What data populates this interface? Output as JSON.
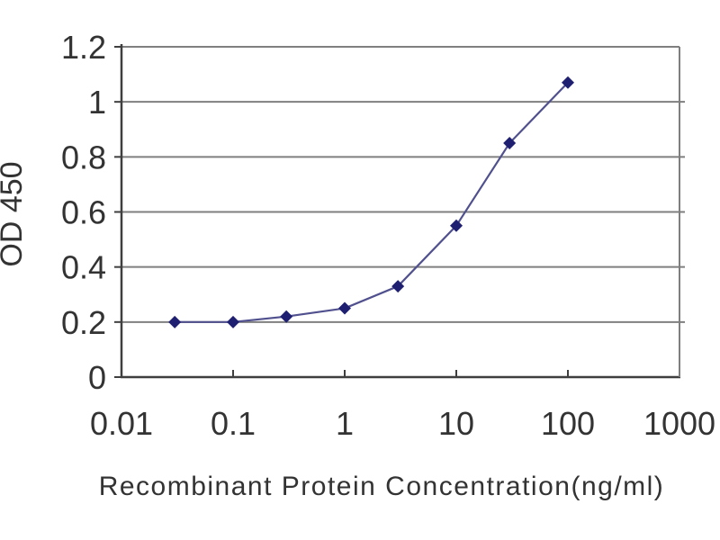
{
  "figure": {
    "background": "#ffffff"
  },
  "chart_data": {
    "type": "line",
    "title": "",
    "xlabel": "Recombinant Protein Concentration(ng/ml)",
    "ylabel": "OD 450",
    "x_scale": "log10",
    "xlim": [
      0.01,
      1000
    ],
    "ylim": [
      0,
      1.2
    ],
    "x_tick_values": [
      0.01,
      0.1,
      1,
      10,
      100,
      1000
    ],
    "x_tick_labels": [
      "0.01",
      "0.1",
      "1",
      "10",
      "100",
      "1000"
    ],
    "y_tick_values": [
      0,
      0.2,
      0.4,
      0.6,
      0.8,
      1.0,
      1.2
    ],
    "y_tick_labels": [
      "0",
      "0.2",
      "0.4",
      "0.6",
      "0.8",
      "1",
      "1.2"
    ],
    "grid": "horizontal",
    "legend": "none",
    "series": [
      {
        "name": "OD450",
        "marker": "diamond",
        "line_color": "#50508e",
        "marker_color": "#1f1f72",
        "x": [
          0.03,
          0.1,
          0.3,
          1,
          3,
          10,
          30,
          100
        ],
        "y": [
          0.2,
          0.2,
          0.22,
          0.25,
          0.33,
          0.55,
          0.85,
          1.07
        ]
      }
    ],
    "colors": {
      "gridline": "#7f7f7f",
      "axis": "#3f3f3f",
      "text": "#333333"
    }
  }
}
